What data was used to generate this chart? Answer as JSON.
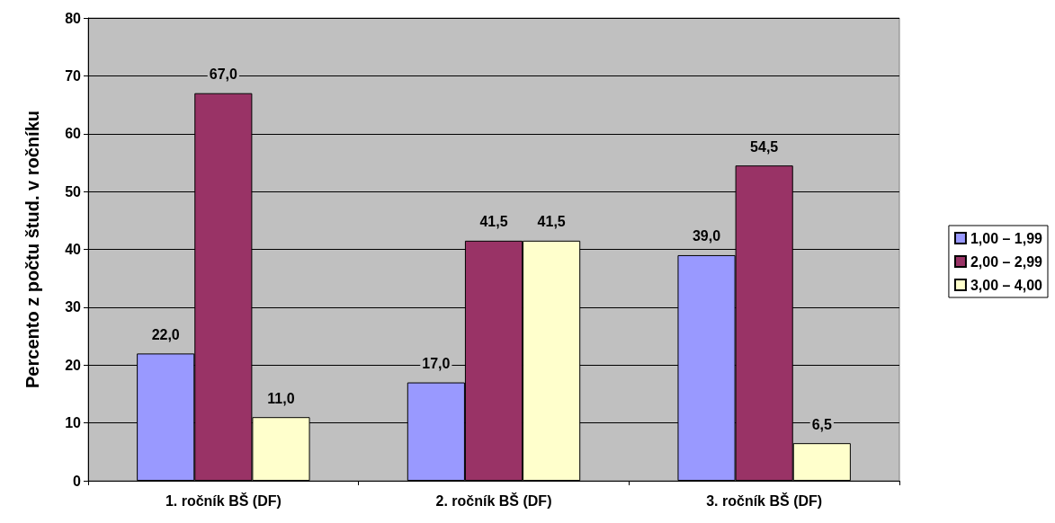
{
  "chart_data": {
    "type": "bar",
    "ylabel": "Percento z počtu štud. v ročníku",
    "categories": [
      "1. ročník BŠ (DF)",
      "2. ročník BŠ (DF)",
      "3. ročník BŠ (DF)"
    ],
    "series": [
      {
        "name": "1,00 – 1,99",
        "color": "#9999ff",
        "values": [
          22,
          17,
          39
        ],
        "value_labels": [
          "22,0",
          "17,0",
          "39,0"
        ]
      },
      {
        "name": "2,00 – 2,99",
        "color": "#993366",
        "values": [
          67,
          41.5,
          54.5
        ],
        "value_labels": [
          "67,0",
          "41,5",
          "54,5"
        ]
      },
      {
        "name": "3,00 – 4,00",
        "color": "#ffffcc",
        "values": [
          11,
          41.5,
          6.5
        ],
        "value_labels": [
          "11,0",
          "41,5",
          "6,5"
        ]
      }
    ],
    "ylim": [
      0,
      80
    ],
    "yticks": [
      0,
      10,
      20,
      30,
      40,
      50,
      60,
      70,
      80
    ],
    "grid": "y",
    "legend": "right"
  }
}
